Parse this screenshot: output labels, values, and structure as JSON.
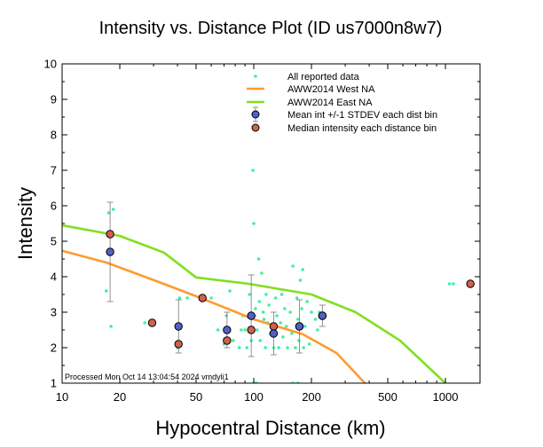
{
  "chart_data": {
    "type": "scatter",
    "title": "Intensity vs. Distance Plot (ID us7000n8w7)",
    "xlabel": "Hypocentral Distance (km)",
    "ylabel": "Intensity",
    "xscale": "log",
    "xlim": [
      10,
      1515
    ],
    "ylim": [
      1,
      10
    ],
    "xticks": [
      {
        "value": 10,
        "label": "10"
      },
      {
        "value": 20,
        "label": "20"
      },
      {
        "value": 50,
        "label": "50"
      },
      {
        "value": 100,
        "label": "100"
      },
      {
        "value": 200,
        "label": "200"
      },
      {
        "value": 500,
        "label": "500"
      },
      {
        "value": 1000,
        "label": "1000"
      }
    ],
    "yticks": [
      1,
      2,
      3,
      4,
      5,
      6,
      7,
      8,
      9,
      10
    ],
    "grid": false,
    "legend_position": "top-right",
    "footer": "Processed Mon Oct 14 13:04:54 2024 vmdyli1",
    "series": [
      {
        "name": "All reported data",
        "kind": "points",
        "color": "#40f0a0",
        "points": [
          [
            17.5,
            5.8
          ],
          [
            18.5,
            5.9
          ],
          [
            17,
            3.6
          ],
          [
            18,
            2.6
          ],
          [
            27,
            2.7
          ],
          [
            40,
            2.0
          ],
          [
            41,
            3.4
          ],
          [
            45,
            3.4
          ],
          [
            60,
            3.4
          ],
          [
            65,
            2.5
          ],
          [
            70,
            2.1
          ],
          [
            72,
            2.9
          ],
          [
            75,
            3.6
          ],
          [
            78,
            2.2
          ],
          [
            84,
            2.0
          ],
          [
            86,
            2.5
          ],
          [
            88,
            2.9
          ],
          [
            90,
            2.5
          ],
          [
            92,
            2.0
          ],
          [
            95,
            3.5
          ],
          [
            97,
            2.2
          ],
          [
            99,
            7.0
          ],
          [
            100,
            5.5
          ],
          [
            101,
            2.9
          ],
          [
            102,
            3.1
          ],
          [
            104,
            2.5
          ],
          [
            106,
            4.5
          ],
          [
            107,
            3.3
          ],
          [
            108,
            2.2
          ],
          [
            110,
            4.1
          ],
          [
            112,
            3.0
          ],
          [
            113,
            2.8
          ],
          [
            115,
            2.0
          ],
          [
            116,
            3.5
          ],
          [
            118,
            2.7
          ],
          [
            120,
            3.2
          ],
          [
            122,
            2.4
          ],
          [
            125,
            2.6
          ],
          [
            127,
            2.0
          ],
          [
            130,
            3.4
          ],
          [
            132,
            2.9
          ],
          [
            135,
            2.0
          ],
          [
            138,
            2.7
          ],
          [
            140,
            3.5
          ],
          [
            142,
            2.3
          ],
          [
            145,
            3.1
          ],
          [
            148,
            2.6
          ],
          [
            150,
            2.0
          ],
          [
            155,
            3.0
          ],
          [
            158,
            2.4
          ],
          [
            160,
            4.3
          ],
          [
            165,
            2.0
          ],
          [
            168,
            3.4
          ],
          [
            170,
            2.8
          ],
          [
            172,
            2.2
          ],
          [
            175,
            3.9
          ],
          [
            178,
            3.1
          ],
          [
            180,
            4.2
          ],
          [
            182,
            2.0
          ],
          [
            185,
            2.6
          ],
          [
            190,
            3.3
          ],
          [
            195,
            2.1
          ],
          [
            200,
            3.0
          ],
          [
            210,
            2.8
          ],
          [
            215,
            2.5
          ],
          [
            220,
            3.0
          ],
          [
            1050,
            3.8
          ],
          [
            1100,
            3.8
          ],
          [
            100,
            1.0
          ],
          [
            103,
            1.0
          ],
          [
            160,
            1.0
          ],
          [
            170,
            1.0
          ]
        ]
      },
      {
        "name": "AWW2014 West NA",
        "kind": "line",
        "color": "#ff9a30",
        "points": [
          [
            10,
            4.73
          ],
          [
            17,
            4.4
          ],
          [
            32,
            3.85
          ],
          [
            50,
            3.45
          ],
          [
            67,
            3.18
          ],
          [
            100,
            2.8
          ],
          [
            180,
            2.38
          ],
          [
            270,
            1.85
          ],
          [
            380,
            1.0
          ]
        ]
      },
      {
        "name": "AWW2014 East NA",
        "kind": "line",
        "color": "#80e020",
        "points": [
          [
            10,
            5.45
          ],
          [
            20,
            5.15
          ],
          [
            34,
            4.68
          ],
          [
            50,
            3.98
          ],
          [
            94,
            3.8
          ],
          [
            200,
            3.5
          ],
          [
            340,
            3.0
          ],
          [
            580,
            2.2
          ],
          [
            1000,
            1.0
          ]
        ]
      },
      {
        "name": "Mean int +/-1 STDEV each dist bin",
        "kind": "errorbar",
        "color": "#5060c8",
        "points": [
          {
            "x": 17.8,
            "y": 4.7,
            "lo": 3.3,
            "hi": 6.1
          },
          {
            "x": 40.5,
            "y": 2.6,
            "lo": 1.85,
            "hi": 3.35
          },
          {
            "x": 72.5,
            "y": 2.5,
            "lo": 2.0,
            "hi": 3.0
          },
          {
            "x": 97,
            "y": 2.9,
            "lo": 1.75,
            "hi": 4.05
          },
          {
            "x": 127,
            "y": 2.4,
            "lo": 1.8,
            "hi": 3.0
          },
          {
            "x": 173,
            "y": 2.6,
            "lo": 1.85,
            "hi": 3.35
          },
          {
            "x": 228,
            "y": 2.9,
            "lo": 2.6,
            "hi": 3.2
          }
        ]
      },
      {
        "name": "Median intensity each distance bin",
        "kind": "points",
        "color": "#d06050",
        "points": [
          [
            17.8,
            5.2
          ],
          [
            29.5,
            2.7
          ],
          [
            40.5,
            2.1
          ],
          [
            54,
            3.4
          ],
          [
            72.5,
            2.2
          ],
          [
            97,
            2.5
          ],
          [
            127,
            2.6
          ],
          [
            173,
            2.6
          ],
          [
            228,
            2.9
          ],
          [
            1350,
            3.8
          ]
        ]
      }
    ]
  }
}
